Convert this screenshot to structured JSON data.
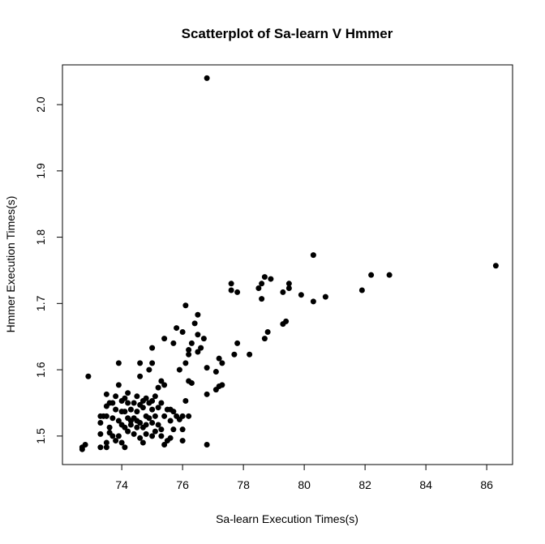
{
  "chart_data": {
    "type": "scatter",
    "title": "Scatterplot of Sa-learn V Hmmer",
    "x_label": "Sa-learn Execution Times(s)",
    "y_label": "Hmmer Execution Times(s)",
    "color": "#000000",
    "xlim": [
      72.05,
      86.85
    ],
    "ylim": [
      1.457,
      2.06
    ],
    "xticks": [
      74,
      76,
      78,
      80,
      82,
      84,
      86
    ],
    "yticks": [
      1.5,
      1.6,
      1.7,
      1.8,
      1.9,
      {
        "value": 2,
        "label": "2.0"
      }
    ],
    "x": [
      76.8,
      86.3,
      82.8,
      82.2,
      81.9,
      80.3,
      80.3,
      80.7,
      79.5,
      79.5,
      79.9,
      79.3,
      79.4,
      79.3,
      78.9,
      78.7,
      78.6,
      78.5,
      78.6,
      78.8,
      78.7,
      77.6,
      77.6,
      77.8,
      77.8,
      77.7,
      78.2,
      77.3,
      77.2,
      77.1,
      77.2,
      77.1,
      77.3,
      76.8,
      76.8,
      76.8,
      76.7,
      76.5,
      76.4,
      76.5,
      76.6,
      76.5,
      76.3,
      76.2,
      76.2,
      76.1,
      76.0,
      76.1,
      76.2,
      76.1,
      76.3,
      75.8,
      75.7,
      75.4,
      75.9,
      76.0,
      76.2,
      75.9,
      76.0,
      76.0,
      75.8,
      72.7,
      72.8,
      72.7,
      72.9,
      73.3,
      73.4,
      73.3,
      73.3,
      73.3,
      73.5,
      73.5,
      73.6,
      73.5,
      73.6,
      73.5,
      73.5,
      73.7,
      73.8,
      73.9,
      73.9,
      73.8,
      73.9,
      74.0,
      73.9,
      74.0,
      74.1,
      73.8,
      73.7,
      74.1,
      74.1,
      74.2,
      74.2,
      74.3,
      74.3,
      74.4,
      74.4,
      74.5,
      74.5,
      74.6,
      74.6,
      74.6,
      74.7,
      74.7,
      74.7,
      74.8,
      74.8,
      74.8,
      74.9,
      74.9,
      75.0,
      75.0,
      75.0,
      75.0,
      75.0,
      75.1,
      75.1,
      75.2,
      75.2,
      75.3,
      75.3,
      75.3,
      75.4,
      75.4,
      75.5,
      75.5,
      75.6,
      75.6,
      75.6,
      75.7,
      75.7,
      74.2,
      74.2,
      74.0,
      74.1,
      74.4,
      74.5,
      74.6,
      74.3,
      75.1,
      75.2,
      74.9,
      75.0,
      73.7,
      73.6,
      74.0,
      74.6,
      74.5,
      75.3,
      75.4,
      74.7,
      74.8
    ],
    "values": [
      2.04,
      1.757,
      1.743,
      1.743,
      1.72,
      1.773,
      1.703,
      1.71,
      1.73,
      1.723,
      1.713,
      1.717,
      1.673,
      1.669,
      1.737,
      1.74,
      1.73,
      1.723,
      1.707,
      1.657,
      1.647,
      1.73,
      1.72,
      1.717,
      1.64,
      1.623,
      1.623,
      1.61,
      1.617,
      1.597,
      1.575,
      1.57,
      1.577,
      1.603,
      1.563,
      1.487,
      1.647,
      1.683,
      1.67,
      1.653,
      1.633,
      1.627,
      1.64,
      1.63,
      1.623,
      1.697,
      1.657,
      1.61,
      1.583,
      1.553,
      1.58,
      1.663,
      1.64,
      1.647,
      1.6,
      1.53,
      1.53,
      1.525,
      1.51,
      1.493,
      1.53,
      1.48,
      1.487,
      1.483,
      1.59,
      1.53,
      1.53,
      1.52,
      1.503,
      1.483,
      1.563,
      1.545,
      1.55,
      1.53,
      1.505,
      1.49,
      1.483,
      1.55,
      1.56,
      1.61,
      1.577,
      1.54,
      1.523,
      1.517,
      1.5,
      1.49,
      1.483,
      1.493,
      1.5,
      1.557,
      1.537,
      1.527,
      1.507,
      1.54,
      1.517,
      1.55,
      1.503,
      1.56,
      1.537,
      1.59,
      1.61,
      1.52,
      1.543,
      1.513,
      1.49,
      1.557,
      1.53,
      1.503,
      1.6,
      1.55,
      1.633,
      1.61,
      1.553,
      1.52,
      1.5,
      1.56,
      1.53,
      1.517,
      1.573,
      1.583,
      1.51,
      1.5,
      1.487,
      1.577,
      1.54,
      1.493,
      1.523,
      1.497,
      1.54,
      1.537,
      1.51,
      1.565,
      1.55,
      1.537,
      1.513,
      1.527,
      1.513,
      1.497,
      1.523,
      1.507,
      1.543,
      1.527,
      1.54,
      1.527,
      1.513,
      1.553,
      1.547,
      1.523,
      1.55,
      1.53,
      1.553,
      1.517
    ]
  }
}
